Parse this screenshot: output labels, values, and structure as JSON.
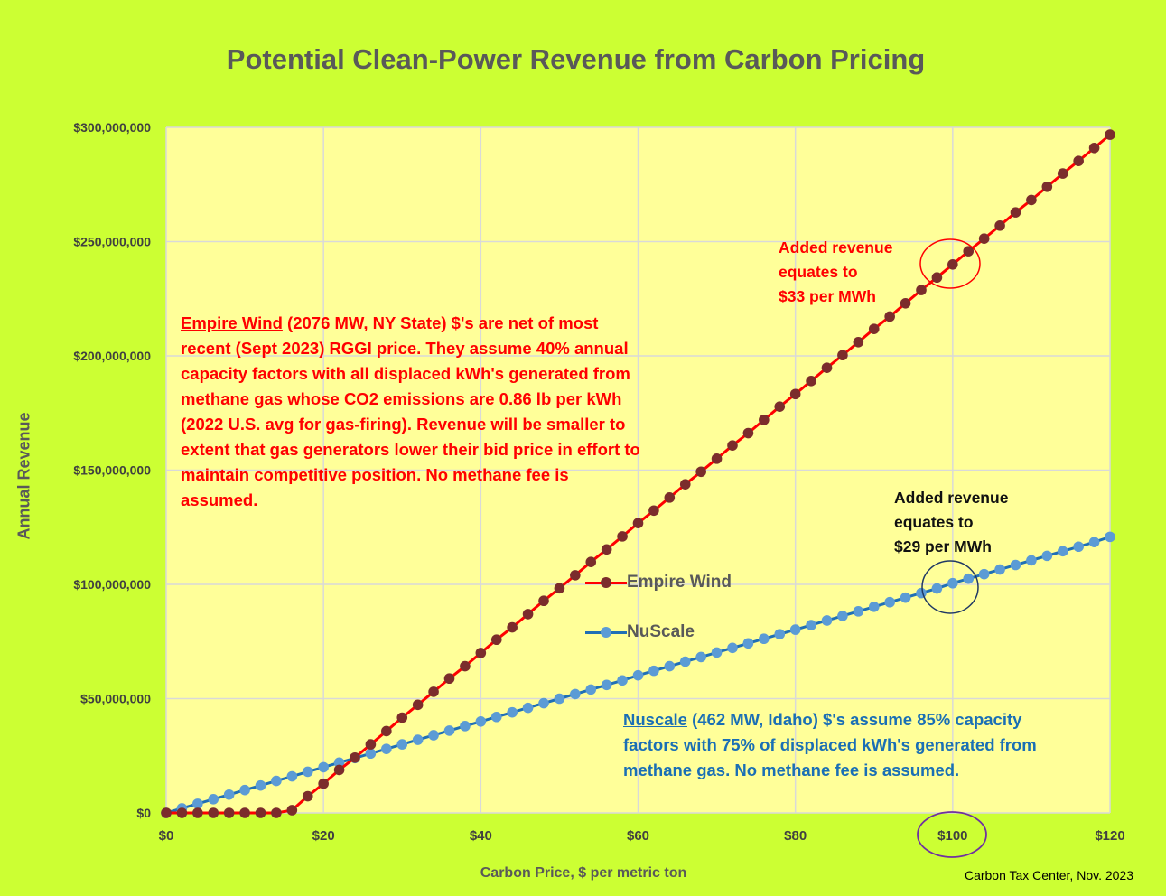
{
  "chart_data": {
    "type": "line",
    "title": "Potential Clean-Power Revenue from Carbon Pricing",
    "xlabel": "Carbon Price, $ per metric ton",
    "ylabel": "Annual Revenue",
    "xlim": [
      0,
      120
    ],
    "ylim": [
      0,
      300000000
    ],
    "x_ticks": [
      "$0",
      "$20",
      "$40",
      "$60",
      "$80",
      "$100",
      "$120"
    ],
    "y_ticks": [
      "$0",
      "$50,000,000",
      "$100,000,000",
      "$150,000,000",
      "$200,000,000",
      "$250,000,000",
      "$300,000,000"
    ],
    "grid": true,
    "legend_position": "center",
    "x": [
      0,
      2,
      4,
      6,
      8,
      10,
      12,
      14,
      16,
      18,
      20,
      22,
      24,
      26,
      28,
      30,
      32,
      34,
      36,
      38,
      40,
      42,
      44,
      46,
      48,
      50,
      52,
      54,
      56,
      58,
      60,
      62,
      64,
      66,
      68,
      70,
      72,
      74,
      76,
      78,
      80,
      82,
      84,
      86,
      88,
      90,
      92,
      94,
      96,
      98,
      100,
      102,
      104,
      106,
      108,
      110,
      112,
      114,
      116,
      118,
      120
    ],
    "series": [
      {
        "name": "Empire Wind",
        "line_color": "#ff0000",
        "marker_color": "#7b2c2c",
        "values": [
          0,
          0,
          0,
          0,
          0,
          0,
          0,
          0,
          1200000,
          7300000,
          12800000,
          18800000,
          24200000,
          30000000,
          35800000,
          41700000,
          47300000,
          53000000,
          58800000,
          64200000,
          70000000,
          75800000,
          81200000,
          87000000,
          92800000,
          98300000,
          104000000,
          109800000,
          115300000,
          121000000,
          126800000,
          132300000,
          138000000,
          143800000,
          149300000,
          155000000,
          160800000,
          166200000,
          172000000,
          177800000,
          183300000,
          189000000,
          194800000,
          200300000,
          206000000,
          211800000,
          217200000,
          223000000,
          228800000,
          234300000,
          240000000,
          245800000,
          251300000,
          257000000,
          262800000,
          268200000,
          274000000,
          279800000,
          285300000,
          291000000,
          296800000
        ]
      },
      {
        "name": "NuScale",
        "line_color": "#1f6fb5",
        "marker_color": "#5b9bd5",
        "values": [
          0,
          2000000,
          4000000,
          6000000,
          8000000,
          10000000,
          12000000,
          14000000,
          16000000,
          18000000,
          20000000,
          22000000,
          24000000,
          26000000,
          28000000,
          30000000,
          32000000,
          34000000,
          36000000,
          38000000,
          40000000,
          42000000,
          44000000,
          46000000,
          48000000,
          50000000,
          52000000,
          54000000,
          56000000,
          58000000,
          60200000,
          62200000,
          64200000,
          66200000,
          68200000,
          70200000,
          72200000,
          74200000,
          76200000,
          78200000,
          80200000,
          82200000,
          84200000,
          86200000,
          88200000,
          90200000,
          92200000,
          94200000,
          96200000,
          98200000,
          100500000,
          102500000,
          104500000,
          106500000,
          108500000,
          110500000,
          112500000,
          114500000,
          116500000,
          118500000,
          120800000
        ]
      }
    ],
    "annotations": {
      "empire_wind_callout": "Added  revenue\nequates to\n$33 per MWh",
      "nuscale_callout": "Added revenue\nequates to\n$29 per MWh",
      "empire_wind_note_head": "Empire Wind",
      "empire_wind_note_body": " (2076 MW, NY State) $'s are net of most recent (Sept 2023) RGGI price. They assume 40% annual capacity factors with all displaced kWh's generated from methane gas whose CO2 emissions are 0.86 lb per kWh (2022 U.S. avg for gas-firing). Revenue will be smaller to extent that gas generators lower their bid price in effort to maintain competitive position. No methane fee is assumed.",
      "nuscale_note_head": "Nuscale",
      "nuscale_note_body": " (462 MW, Idaho) $'s assume 85% capacity factors with 75% of displaced kWh's generated from methane gas. No methane fee is assumed.",
      "source": "Carbon Tax Center, Nov. 2023"
    }
  }
}
